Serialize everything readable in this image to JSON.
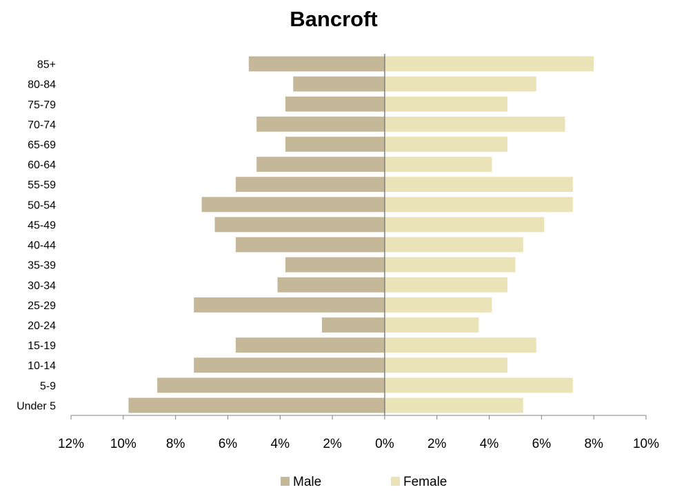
{
  "chart_data": {
    "type": "bar",
    "orientation": "horizontal",
    "title": "Bancroft",
    "categories": [
      "85+",
      "80-84",
      "75-79",
      "70-74",
      "65-69",
      "60-64",
      "55-59",
      "50-54",
      "45-49",
      "40-44",
      "35-39",
      "30-34",
      "25-29",
      "20-24",
      "15-19",
      "10-14",
      "5-9",
      "Under 5"
    ],
    "series": [
      {
        "name": "Male",
        "color": "#c4b899",
        "values": [
          5.2,
          3.5,
          3.8,
          4.9,
          3.8,
          4.9,
          5.7,
          7.0,
          6.5,
          5.7,
          3.8,
          4.1,
          7.3,
          2.4,
          5.7,
          7.3,
          8.7,
          9.8
        ]
      },
      {
        "name": "Female",
        "color": "#ebe3b8",
        "values": [
          8.0,
          5.8,
          4.7,
          6.9,
          4.7,
          4.1,
          7.2,
          7.2,
          6.1,
          5.3,
          5.0,
          4.7,
          4.1,
          3.6,
          5.8,
          4.7,
          7.2,
          5.3
        ]
      }
    ],
    "xlim": [
      -12,
      10
    ],
    "x_ticks": [
      -12,
      -10,
      -8,
      -6,
      -4,
      -2,
      0,
      2,
      4,
      6,
      8,
      10
    ],
    "x_tick_labels": [
      "12%",
      "10%",
      "8%",
      "6%",
      "4%",
      "2%",
      "0%",
      "2%",
      "4%",
      "6%",
      "8%",
      "10%"
    ],
    "grid": false,
    "legend_position": "bottom"
  }
}
